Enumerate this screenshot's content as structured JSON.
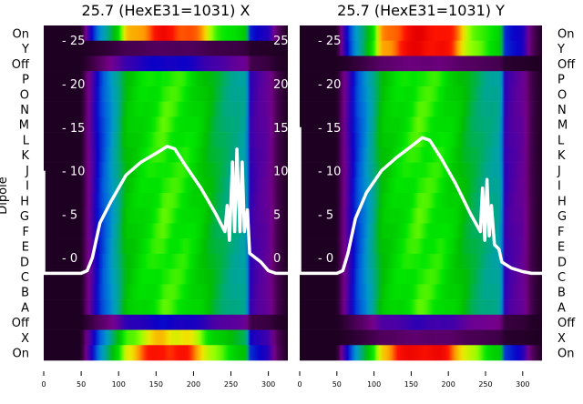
{
  "chart_data": [
    {
      "type": "heatmap",
      "title": "25.7 (HexE31=1031) X",
      "ylabel": "Dipole",
      "xlim": [
        0,
        326
      ],
      "ylim": [
        -11.8,
        26.7
      ],
      "x_ticks": [
        0,
        50,
        100,
        150,
        200,
        250,
        300
      ],
      "y_ticks": [
        0,
        5,
        10,
        15,
        20,
        25
      ],
      "rows": [
        "On",
        "Y",
        "Off",
        "P",
        "O",
        "N",
        "M",
        "L",
        "K",
        "J",
        "I",
        "H",
        "G",
        "F",
        "E",
        "D",
        "C",
        "B",
        "A",
        "Off",
        "X",
        "On"
      ],
      "row_intensity": [
        0.9,
        0.04,
        0.15,
        0.6,
        0.6,
        0.6,
        0.6,
        0.6,
        0.6,
        0.6,
        0.6,
        0.6,
        0.6,
        0.6,
        0.6,
        0.6,
        0.6,
        0.6,
        0.6,
        0.15,
        0.75,
        0.9
      ],
      "heatmap_profile": {
        "x": [
          0,
          50,
          58,
          65,
          75,
          85,
          100,
          110,
          130,
          160,
          190,
          210,
          230,
          250,
          270,
          276,
          285,
          300,
          312,
          326
        ],
        "v": [
          0,
          0,
          0.1,
          0.17,
          0.3,
          0.4,
          0.6,
          0.8,
          0.9,
          1,
          0.95,
          0.85,
          0.7,
          0.6,
          0.55,
          0.2,
          0.17,
          0.14,
          0.05,
          0
        ]
      },
      "series": {
        "name": "profile",
        "x": [
          0,
          0,
          50,
          58,
          65,
          75,
          90,
          110,
          130,
          150,
          165,
          175,
          190,
          210,
          230,
          242,
          245,
          248,
          252,
          255,
          258,
          262,
          265,
          268,
          272,
          275,
          290,
          300,
          310,
          326
        ],
        "y": [
          10,
          -1.8,
          -1.8,
          -1.5,
          0,
          4,
          6.5,
          9.5,
          11,
          12,
          12.8,
          12.5,
          10.5,
          8,
          5,
          3,
          6,
          2,
          11,
          3,
          12.5,
          3,
          11,
          3,
          5.5,
          0.5,
          -0.5,
          -1.5,
          -1.8,
          -1.8
        ]
      }
    },
    {
      "type": "heatmap",
      "title": "25.7 (HexE31=1031) Y",
      "ylabel": "",
      "xlim": [
        0,
        326
      ],
      "ylim": [
        -11.8,
        26.7
      ],
      "x_ticks": [
        0,
        50,
        100,
        150,
        200,
        250,
        300
      ],
      "y_ticks": [
        0,
        5,
        10,
        15,
        20,
        25
      ],
      "rows": [
        "On",
        "Y",
        "Off",
        "P",
        "O",
        "N",
        "M",
        "L",
        "K",
        "J",
        "I",
        "H",
        "G",
        "F",
        "E",
        "D",
        "C",
        "B",
        "A",
        "Off",
        "X",
        "On"
      ],
      "row_intensity": [
        0.95,
        0.95,
        0.06,
        0.6,
        0.6,
        0.6,
        0.6,
        0.6,
        0.6,
        0.6,
        0.6,
        0.6,
        0.6,
        0.6,
        0.6,
        0.6,
        0.6,
        0.6,
        0.6,
        0.12,
        0.05,
        0.95
      ],
      "heatmap_profile": {
        "x": [
          0,
          50,
          58,
          65,
          75,
          85,
          100,
          110,
          130,
          160,
          190,
          210,
          230,
          250,
          270,
          276,
          285,
          300,
          312,
          326
        ],
        "v": [
          0,
          0,
          0.1,
          0.17,
          0.3,
          0.4,
          0.6,
          0.8,
          0.9,
          1,
          0.95,
          0.85,
          0.7,
          0.6,
          0.55,
          0.2,
          0.17,
          0.14,
          0.05,
          0
        ]
      },
      "series": {
        "name": "profile",
        "x": [
          0,
          0,
          50,
          58,
          65,
          75,
          90,
          110,
          130,
          150,
          165,
          175,
          190,
          210,
          230,
          243,
          246,
          249,
          252,
          255,
          258,
          262,
          268,
          272,
          285,
          300,
          312,
          326
        ],
        "y": [
          15,
          -1.8,
          -1.8,
          -1.5,
          0.5,
          4.5,
          7.5,
          10,
          11.5,
          12.8,
          13.8,
          13.5,
          11.5,
          8.5,
          5,
          3,
          8,
          2,
          9,
          2.5,
          6,
          1.5,
          1,
          -0.5,
          -1.2,
          -1.6,
          -1.8,
          -1.8
        ]
      }
    }
  ]
}
